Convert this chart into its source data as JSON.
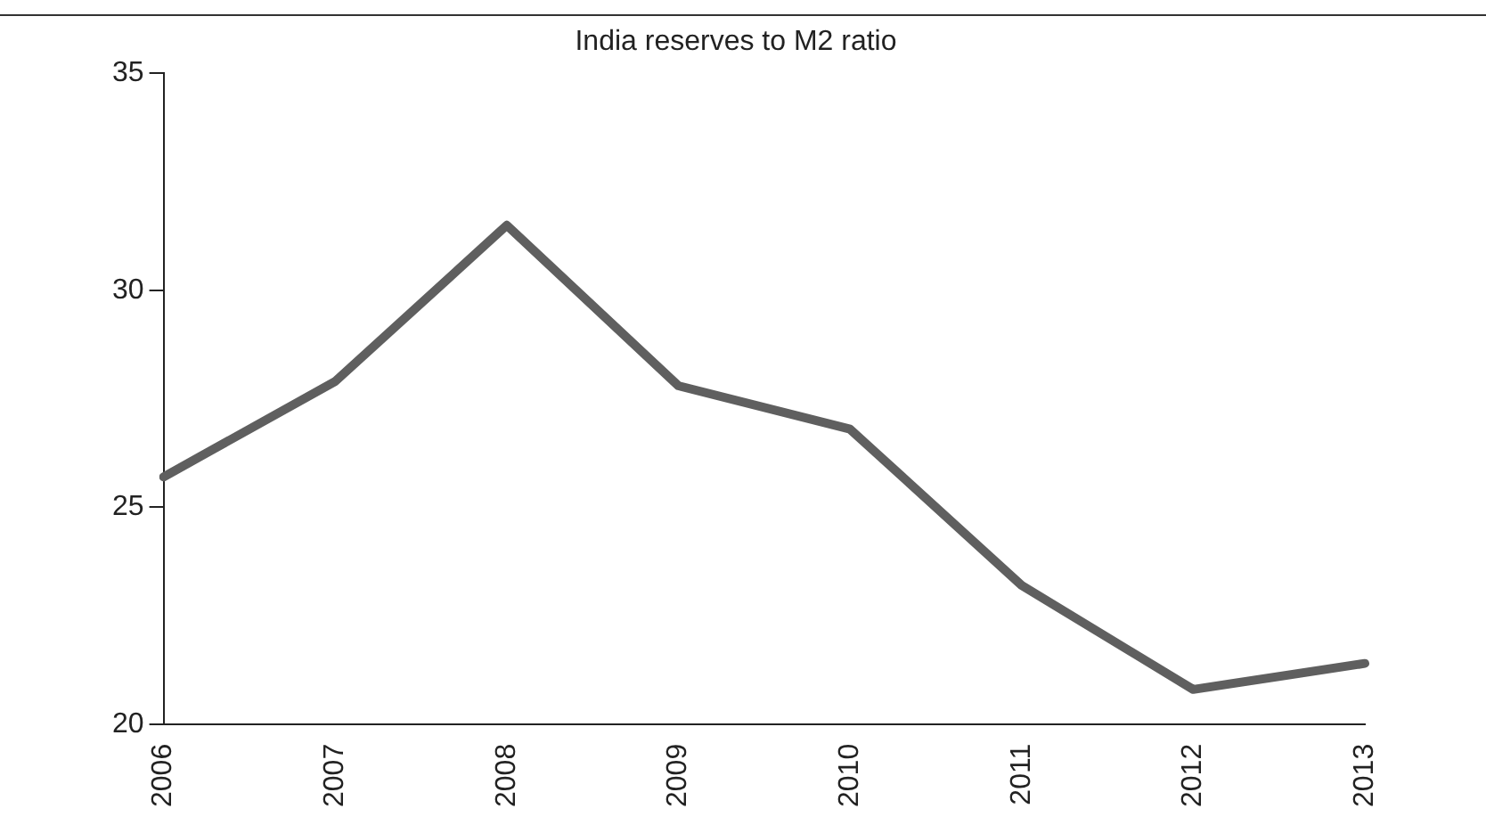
{
  "chart_data": {
    "type": "line",
    "title": "India reserves to M2 ratio",
    "categories": [
      "2006",
      "2007",
      "2008",
      "2009",
      "2010",
      "2011",
      "2012",
      "2013"
    ],
    "series": [
      {
        "color": "#5f5f5f",
        "values": [
          25.7,
          27.9,
          31.5,
          27.8,
          26.8,
          23.2,
          20.8,
          21.4
        ]
      }
    ],
    "ylim": [
      20,
      35
    ],
    "yticks": [
      20,
      25,
      30,
      35
    ],
    "grid": false,
    "legend": false,
    "marker": "none",
    "line_style": "solid"
  }
}
